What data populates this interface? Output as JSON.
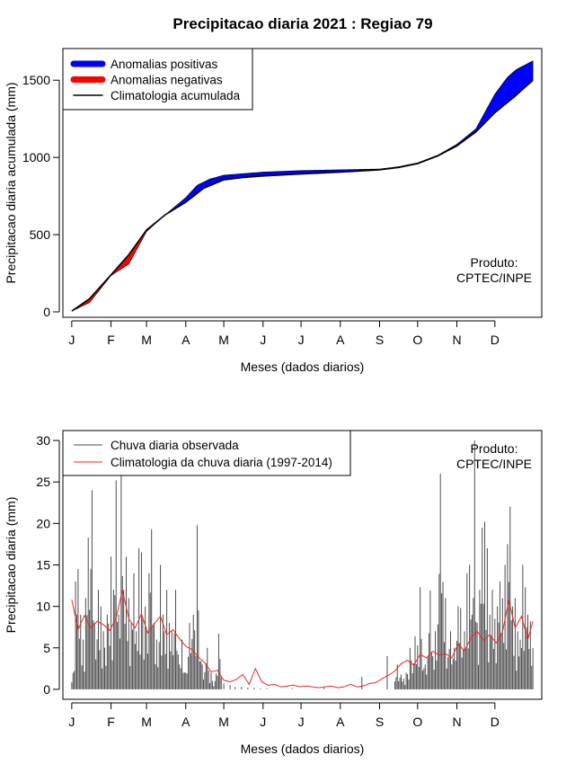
{
  "title": "Precipitacao diaria 2021 : Regiao 79",
  "product_label": "Produto:\nCPTEC/INPE",
  "colors": {
    "positive": "#0000ff",
    "negative": "#ff0000",
    "climatology_line": "#000000",
    "observed_bar": "#4d4d4d",
    "climatology_daily": "#e8262b"
  },
  "chart_data": [
    {
      "type": "area",
      "ylabel": "Precipitacao diaria acumulada (mm)",
      "xlabel": "Meses (dados diarios)",
      "x_ticks": [
        "J",
        "F",
        "M",
        "A",
        "M",
        "J",
        "J",
        "A",
        "S",
        "O",
        "N",
        "D"
      ],
      "x_tick_days": [
        1,
        32,
        60,
        91,
        121,
        152,
        182,
        213,
        244,
        274,
        305,
        335
      ],
      "xlim": [
        -6,
        372
      ],
      "ylim": [
        -35,
        1705
      ],
      "y_ticks": [
        0,
        500,
        1000,
        1500
      ],
      "legend": [
        "Anomalias positivas",
        "Anomalias negativas",
        "Climatologia acumulada"
      ],
      "legend_position": "top-left",
      "product_position": "bottom-right",
      "climatology_cumulative": {
        "day": [
          1,
          15,
          32,
          46,
          60,
          75,
          91,
          105,
          121,
          136,
          152,
          182,
          213,
          244,
          259,
          274,
          290,
          305,
          320,
          335,
          350,
          365
        ],
        "mm": [
          5,
          85,
          240,
          370,
          530,
          630,
          710,
          800,
          855,
          870,
          880,
          893,
          905,
          920,
          935,
          960,
          1010,
          1075,
          1165,
          1290,
          1390,
          1500
        ]
      },
      "observed_cumulative": {
        "day": [
          1,
          15,
          32,
          46,
          60,
          75,
          91,
          100,
          110,
          121,
          136,
          152,
          182,
          213,
          244,
          259,
          274,
          290,
          305,
          320,
          335,
          345,
          352,
          365
        ],
        "mm": [
          5,
          60,
          235,
          310,
          520,
          630,
          740,
          820,
          860,
          885,
          895,
          905,
          915,
          920,
          925,
          940,
          965,
          1015,
          1085,
          1185,
          1410,
          1520,
          1570,
          1625
        ]
      }
    },
    {
      "type": "bar",
      "ylabel": "Precipitacao diaria (mm)",
      "xlabel": "Meses (dados diarios)",
      "x_ticks": [
        "J",
        "F",
        "M",
        "A",
        "M",
        "J",
        "J",
        "A",
        "S",
        "O",
        "N",
        "D"
      ],
      "x_tick_days": [
        1,
        32,
        60,
        91,
        121,
        152,
        182,
        213,
        244,
        274,
        305,
        335
      ],
      "xlim": [
        -6,
        372
      ],
      "ylim": [
        -1.2,
        31.2
      ],
      "y_ticks": [
        0,
        5,
        10,
        15,
        20,
        25,
        30
      ],
      "legend": [
        "Chuva diaria observada",
        "Climatologia da chuva diaria (1997-2014)"
      ],
      "legend_position": "top-left",
      "product_position": "top-right",
      "observed_peaks": {
        "day": [
          2,
          4,
          6,
          8,
          10,
          12,
          14,
          17,
          19,
          22,
          24,
          26,
          29,
          32,
          34,
          36,
          38,
          40,
          42,
          44,
          46,
          48,
          50,
          52,
          54,
          56,
          59,
          62,
          64,
          66,
          68,
          71,
          73,
          76,
          78,
          80,
          83,
          86,
          88,
          91,
          94,
          97,
          100,
          104,
          108,
          111,
          114,
          117,
          121,
          126,
          130,
          135,
          140,
          145,
          150,
          155,
          175,
          200,
          230,
          250,
          258,
          265,
          268,
          272,
          276,
          280,
          284,
          286,
          288,
          292,
          296,
          300,
          303,
          306,
          308,
          311,
          313,
          315,
          317,
          319,
          321,
          323,
          325,
          327,
          329,
          331,
          333,
          335,
          337,
          339,
          341,
          343,
          345,
          347,
          349,
          351,
          353,
          355,
          357,
          359,
          361,
          363,
          365
        ],
        "mm": [
          2,
          13,
          14.5,
          9,
          6,
          11,
          18.3,
          24,
          8,
          12,
          10,
          7,
          9,
          16,
          12,
          25.2,
          9,
          27,
          12,
          16,
          11,
          8,
          14,
          7,
          17,
          16.5,
          10,
          14,
          19.3,
          8,
          6,
          15,
          9,
          12,
          8,
          7,
          12,
          3,
          6,
          2,
          8,
          9,
          19.8,
          3,
          5,
          2,
          1,
          6.7,
          0.7,
          0.5,
          0.3,
          0.3,
          0.2,
          0.2,
          0.1,
          0.1,
          0.1,
          0.2,
          1.5,
          4,
          3,
          2,
          5,
          6.4,
          12.3,
          3,
          11.9,
          4,
          7,
          26,
          11,
          7,
          5,
          10,
          9.8,
          7,
          14,
          15,
          9,
          30,
          8,
          12,
          19.5,
          20.2,
          17,
          9,
          12,
          8.5,
          10,
          13,
          11,
          15,
          17.5,
          22,
          10,
          11,
          7,
          6,
          15,
          12.3,
          9,
          8.2,
          5
        ]
      },
      "climatology_daily": {
        "day": [
          1,
          6,
          11,
          16,
          21,
          26,
          31,
          36,
          41,
          46,
          51,
          56,
          61,
          66,
          71,
          76,
          81,
          86,
          91,
          96,
          101,
          106,
          111,
          116,
          121,
          126,
          131,
          136,
          141,
          146,
          151,
          156,
          161,
          166,
          171,
          176,
          181,
          186,
          191,
          196,
          201,
          206,
          211,
          216,
          221,
          226,
          231,
          236,
          241,
          246,
          251,
          256,
          261,
          266,
          271,
          276,
          281,
          286,
          291,
          296,
          301,
          306,
          311,
          316,
          321,
          326,
          331,
          336,
          341,
          346,
          351,
          356,
          361,
          365
        ],
        "mm": [
          10.8,
          7.2,
          8.9,
          7.4,
          8.2,
          7.8,
          7.1,
          8.6,
          12.0,
          8.5,
          7.4,
          9.1,
          6.8,
          7.9,
          8.8,
          6.6,
          7.2,
          6.1,
          5.2,
          4.8,
          3.9,
          3.2,
          2.1,
          2.3,
          1.1,
          0.9,
          1.2,
          1.8,
          0.6,
          2.5,
          0.9,
          0.5,
          0.6,
          0.3,
          0.4,
          0.5,
          0.3,
          0.4,
          0.3,
          0.2,
          0.3,
          0.4,
          0.2,
          0.3,
          0.6,
          0.3,
          0.4,
          0.7,
          0.8,
          1.3,
          1.7,
          2.2,
          3.1,
          3.5,
          2.9,
          4.2,
          3.8,
          4.6,
          4.1,
          4.3,
          3.8,
          5.5,
          4.6,
          6.2,
          7.0,
          5.9,
          6.6,
          5.6,
          6.9,
          10.8,
          7.4,
          8.8,
          6.0,
          8.2
        ]
      }
    }
  ]
}
